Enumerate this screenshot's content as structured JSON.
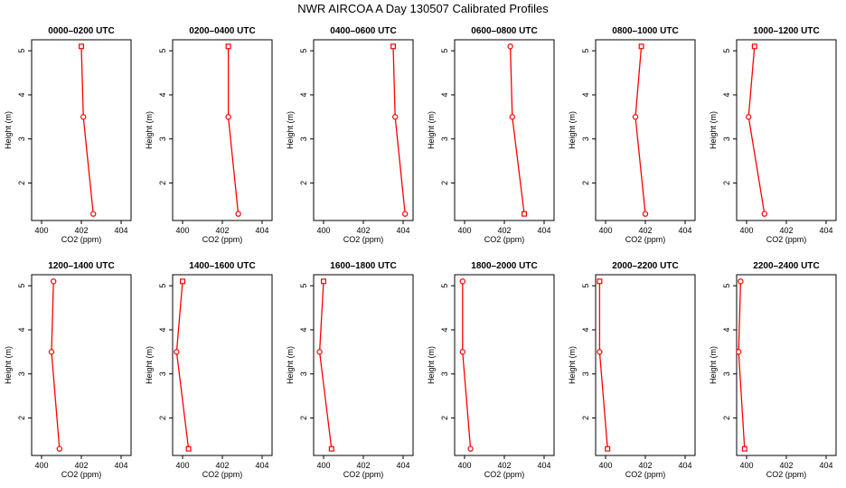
{
  "title": "NWR AIRCOA A  Day 130507  Calibrated Profiles",
  "colors": {
    "series": "#ff0000",
    "axis": "#000000"
  },
  "chart_data": [
    {
      "type": "line",
      "title": "0000–0200 UTC",
      "xlabel": "CO2 (ppm)",
      "ylabel": "Height (m)",
      "xlim": [
        399.5,
        404.5
      ],
      "ylim": [
        1.15,
        5.25
      ],
      "xticks": [
        400,
        402,
        404
      ],
      "yticks": [
        2,
        3,
        4,
        5
      ],
      "x": [
        402.0,
        402.1,
        402.6
      ],
      "y": [
        5.1,
        3.5,
        1.3
      ],
      "markers": [
        "square",
        "circle",
        "circle"
      ]
    },
    {
      "type": "line",
      "title": "0200–0400 UTC",
      "xlabel": "CO2 (ppm)",
      "ylabel": "Height (m)",
      "xlim": [
        399.5,
        404.5
      ],
      "ylim": [
        1.15,
        5.25
      ],
      "xticks": [
        400,
        402,
        404
      ],
      "yticks": [
        2,
        3,
        4,
        5
      ],
      "x": [
        402.3,
        402.3,
        402.8
      ],
      "y": [
        5.1,
        3.5,
        1.3
      ],
      "markers": [
        "square",
        "circle",
        "circle"
      ]
    },
    {
      "type": "line",
      "title": "0400–0600 UTC",
      "xlabel": "CO2 (ppm)",
      "ylabel": "Height (m)",
      "xlim": [
        399.5,
        404.5
      ],
      "ylim": [
        1.15,
        5.25
      ],
      "xticks": [
        400,
        402,
        404
      ],
      "yticks": [
        2,
        3,
        4,
        5
      ],
      "x": [
        403.5,
        403.6,
        404.1
      ],
      "y": [
        5.1,
        3.5,
        1.3
      ],
      "markers": [
        "square",
        "circle",
        "circle"
      ]
    },
    {
      "type": "line",
      "title": "0600–0800 UTC",
      "xlabel": "CO2 (ppm)",
      "ylabel": "Height (m)",
      "xlim": [
        399.5,
        404.5
      ],
      "ylim": [
        1.15,
        5.25
      ],
      "xticks": [
        400,
        402,
        404
      ],
      "yticks": [
        2,
        3,
        4,
        5
      ],
      "x": [
        402.3,
        402.4,
        403.0
      ],
      "y": [
        5.1,
        3.5,
        1.3
      ],
      "markers": [
        "circle",
        "circle",
        "square"
      ]
    },
    {
      "type": "line",
      "title": "0800–1000 UTC",
      "xlabel": "CO2 (ppm)",
      "ylabel": "Height (m)",
      "xlim": [
        399.5,
        404.5
      ],
      "ylim": [
        1.15,
        5.25
      ],
      "xticks": [
        400,
        402,
        404
      ],
      "yticks": [
        2,
        3,
        4,
        5
      ],
      "x": [
        401.8,
        401.5,
        402.0
      ],
      "y": [
        5.1,
        3.5,
        1.3
      ],
      "markers": [
        "square",
        "circle",
        "circle"
      ]
    },
    {
      "type": "line",
      "title": "1000–1200 UTC",
      "xlabel": "CO2 (ppm)",
      "ylabel": "Height (m)",
      "xlim": [
        399.5,
        404.5
      ],
      "ylim": [
        1.15,
        5.25
      ],
      "xticks": [
        400,
        402,
        404
      ],
      "yticks": [
        2,
        3,
        4,
        5
      ],
      "x": [
        400.4,
        400.1,
        400.9
      ],
      "y": [
        5.1,
        3.5,
        1.3
      ],
      "markers": [
        "square",
        "circle",
        "circle"
      ]
    },
    {
      "type": "line",
      "title": "1200–1400 UTC",
      "xlabel": "CO2 (ppm)",
      "ylabel": "Height (m)",
      "xlim": [
        399.5,
        404.5
      ],
      "ylim": [
        1.15,
        5.25
      ],
      "xticks": [
        400,
        402,
        404
      ],
      "yticks": [
        2,
        3,
        4,
        5
      ],
      "x": [
        400.6,
        400.5,
        400.9
      ],
      "y": [
        5.1,
        3.5,
        1.3
      ],
      "markers": [
        "circle",
        "circle",
        "circle"
      ]
    },
    {
      "type": "line",
      "title": "1400–1600 UTC",
      "xlabel": "CO2 (ppm)",
      "ylabel": "Height (m)",
      "xlim": [
        399.5,
        404.5
      ],
      "ylim": [
        1.15,
        5.25
      ],
      "xticks": [
        400,
        402,
        404
      ],
      "yticks": [
        2,
        3,
        4,
        5
      ],
      "x": [
        400.0,
        399.7,
        400.3
      ],
      "y": [
        5.1,
        3.5,
        1.3
      ],
      "markers": [
        "square",
        "circle",
        "square"
      ]
    },
    {
      "type": "line",
      "title": "1600–1800 UTC",
      "xlabel": "CO2 (ppm)",
      "ylabel": "Height (m)",
      "xlim": [
        399.5,
        404.5
      ],
      "ylim": [
        1.15,
        5.25
      ],
      "xticks": [
        400,
        402,
        404
      ],
      "yticks": [
        2,
        3,
        4,
        5
      ],
      "x": [
        400.0,
        399.8,
        400.4
      ],
      "y": [
        5.1,
        3.5,
        1.3
      ],
      "markers": [
        "square",
        "circle",
        "square"
      ]
    },
    {
      "type": "line",
      "title": "1800–2000 UTC",
      "xlabel": "CO2 (ppm)",
      "ylabel": "Height (m)",
      "xlim": [
        399.5,
        404.5
      ],
      "ylim": [
        1.15,
        5.25
      ],
      "xticks": [
        400,
        402,
        404
      ],
      "yticks": [
        2,
        3,
        4,
        5
      ],
      "x": [
        399.9,
        399.9,
        400.3
      ],
      "y": [
        5.1,
        3.5,
        1.3
      ],
      "markers": [
        "circle",
        "circle",
        "circle"
      ]
    },
    {
      "type": "line",
      "title": "2000–2200 UTC",
      "xlabel": "CO2 (ppm)",
      "ylabel": "Height (m)",
      "xlim": [
        399.5,
        404.5
      ],
      "ylim": [
        1.15,
        5.25
      ],
      "xticks": [
        400,
        402,
        404
      ],
      "yticks": [
        2,
        3,
        4,
        5
      ],
      "x": [
        399.7,
        399.7,
        400.1
      ],
      "y": [
        5.1,
        3.5,
        1.3
      ],
      "markers": [
        "square",
        "circle",
        "square"
      ]
    },
    {
      "type": "line",
      "title": "2200–2400 UTC",
      "xlabel": "CO2 (ppm)",
      "ylabel": "Height (m)",
      "xlim": [
        399.5,
        404.5
      ],
      "ylim": [
        1.15,
        5.25
      ],
      "xticks": [
        400,
        402,
        404
      ],
      "yticks": [
        2,
        3,
        4,
        5
      ],
      "x": [
        399.7,
        399.6,
        399.9
      ],
      "y": [
        5.1,
        3.5,
        1.3
      ],
      "markers": [
        "circle",
        "circle",
        "square"
      ]
    }
  ]
}
